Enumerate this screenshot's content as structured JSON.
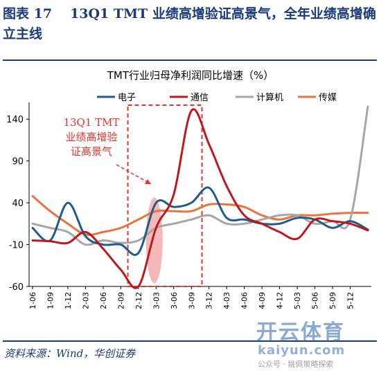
{
  "header": {
    "figure_label": "图表 17",
    "title": "13Q1 TMT 业绩高增验证高景气，全年业绩高增确立主线"
  },
  "source": "资料来源：Wind，华创证券",
  "watermark": {
    "brand": "开云体育",
    "site": "kaiyun.com",
    "wechat": "公众号 · 姚佩策略探索"
  },
  "annotation": "13Q1 TMT\n业绩高增验\n证高景气",
  "colors": {
    "electronics": "#1f5b8c",
    "telecom": "#c0171d",
    "computer": "#a6a6a6",
    "media": "#e8733b",
    "highlight": "#e8322d"
  },
  "chart_data": {
    "type": "line",
    "title": "TMT行业归母净利润同比增速（%）",
    "xlabel": "",
    "ylabel": "",
    "ylim": [
      -60,
      160
    ],
    "yticks": [
      -60,
      -10,
      40,
      90,
      140
    ],
    "grid": false,
    "legend_position": "top",
    "x": [
      "2011-06",
      "2011-09",
      "2011-12",
      "2012-03",
      "2012-06",
      "2012-09",
      "2012-12",
      "2013-03",
      "2013-06",
      "2013-09",
      "2013-12",
      "2014-03",
      "2014-06",
      "2014-09",
      "2014-12",
      "2015-03",
      "2015-06",
      "2015-09",
      "2015-12",
      "2016-03"
    ],
    "xtick_labels": [
      "2011-06",
      "2011-09",
      "2011-12",
      "2012-03",
      "2012-06",
      "2012-09",
      "2012-12",
      "2013-03",
      "2013-06",
      "2013-09",
      "2013-12",
      "2014-03",
      "2014-06",
      "2014-09",
      "2014-12",
      "2015-03",
      "2015-06",
      "2015-09",
      "2015-12"
    ],
    "series": [
      {
        "name": "电子",
        "color_key": "electronics",
        "values": [
          10,
          -5,
          40,
          0,
          -10,
          -10,
          -20,
          40,
          35,
          40,
          58,
          22,
          20,
          15,
          15,
          22,
          20,
          10,
          18,
          8
        ]
      },
      {
        "name": "通信",
        "color_key": "telecom",
        "values": [
          -5,
          -6,
          -8,
          5,
          -15,
          -40,
          -60,
          10,
          50,
          150,
          110,
          60,
          25,
          15,
          5,
          -3,
          20,
          18,
          15,
          7
        ]
      },
      {
        "name": "计算机",
        "color_key": "computer",
        "values": [
          15,
          10,
          5,
          -10,
          -5,
          -8,
          -5,
          10,
          15,
          20,
          25,
          15,
          15,
          20,
          25,
          25,
          15,
          18,
          20,
          155
        ]
      },
      {
        "name": "传媒",
        "color_key": "media",
        "values": [
          48,
          30,
          15,
          2,
          5,
          10,
          20,
          30,
          30,
          30,
          38,
          38,
          35,
          25,
          20,
          25,
          25,
          27,
          28,
          28
        ]
      }
    ]
  }
}
